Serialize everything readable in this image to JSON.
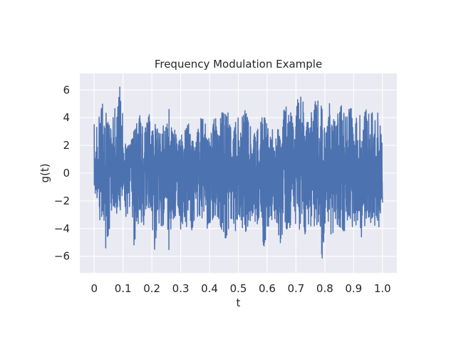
{
  "chart_data": {
    "type": "line",
    "title": "Frequency Modulation Example",
    "xlabel": "t",
    "ylabel": "g(t)",
    "xlim": [
      -0.05,
      1.05
    ],
    "ylim": [
      -7.2,
      7.2
    ],
    "xticks": [
      0,
      0.1,
      0.2,
      0.3,
      0.4,
      0.5,
      0.6,
      0.7,
      0.8,
      0.9,
      1.0
    ],
    "xtick_labels": [
      "0",
      "0.1",
      "0.2",
      "0.3",
      "0.4",
      "0.5",
      "0.6",
      "0.7",
      "0.8",
      "0.9",
      "1.0"
    ],
    "yticks": [
      -6,
      -4,
      -2,
      0,
      2,
      4,
      6
    ],
    "ytick_labels": [
      "−6",
      "−4",
      "−2",
      "0",
      "2",
      "4",
      "6"
    ],
    "grid": true,
    "series": [
      {
        "color": "#4c72b0",
        "description": "dense noisy oscillating signal between roughly -6 and 7",
        "x": [
          0,
          0.01,
          0.02,
          0.03,
          0.04,
          0.05,
          0.06,
          0.07,
          0.08,
          0.09,
          0.095,
          0.1,
          0.11,
          0.12,
          0.13,
          0.14,
          0.15,
          0.16,
          0.17,
          0.18,
          0.19,
          0.2,
          0.21,
          0.22,
          0.23,
          0.24,
          0.25,
          0.26,
          0.27,
          0.28,
          0.29,
          0.3,
          0.31,
          0.32,
          0.33,
          0.34,
          0.35,
          0.36,
          0.37,
          0.38,
          0.39,
          0.4,
          0.41,
          0.42,
          0.43,
          0.44,
          0.45,
          0.46,
          0.47,
          0.48,
          0.49,
          0.5,
          0.51,
          0.52,
          0.53,
          0.54,
          0.55,
          0.56,
          0.57,
          0.58,
          0.59,
          0.6,
          0.61,
          0.62,
          0.63,
          0.64,
          0.65,
          0.66,
          0.67,
          0.68,
          0.69,
          0.7,
          0.71,
          0.72,
          0.73,
          0.74,
          0.75,
          0.76,
          0.77,
          0.78,
          0.79,
          0.8,
          0.81,
          0.82,
          0.83,
          0.84,
          0.85,
          0.86,
          0.87,
          0.88,
          0.89,
          0.9,
          0.91,
          0.92,
          0.93,
          0.94,
          0.95,
          0.96,
          0.97,
          0.98,
          0.99,
          1.0
        ],
        "y_max": [
          3.6,
          4.1,
          4.3,
          5.2,
          4.6,
          4.5,
          5.0,
          5.2,
          4.9,
          6.7,
          6.2,
          4.9,
          1.8,
          2.2,
          2.5,
          3.0,
          4.5,
          4.4,
          3.0,
          3.9,
          4.5,
          3.3,
          3.8,
          3.6,
          2.8,
          3.6,
          3.4,
          4.9,
          3.0,
          3.2,
          2.2,
          2.8,
          3.0,
          3.5,
          4.7,
          3.2,
          2.0,
          3.3,
          4.0,
          5.0,
          3.0,
          3.2,
          4.1,
          4.5,
          3.1,
          5.0,
          4.5,
          4.9,
          3.6,
          3.2,
          3.8,
          4.1,
          3.0,
          6.1,
          4.1,
          4.0,
          3.0,
          3.5,
          4.4,
          4.1,
          4.6,
          3.6,
          2.6,
          3.4,
          4.3,
          3.9,
          2.2,
          5.8,
          4.1,
          4.8,
          3.9,
          4.4,
          6.3,
          5.8,
          4.5,
          3.5,
          4.9,
          4.0,
          6.0,
          4.8,
          5.6,
          4.1,
          3.4,
          6.0,
          4.2,
          3.4,
          5.0,
          4.9,
          4.1,
          4.6,
          5.0,
          3.0,
          4.1,
          4.6,
          2.6,
          4.7,
          4.5,
          6.3,
          3.3,
          4.6,
          4.0,
          2.6
        ],
        "y_min": [
          -0.6,
          -1.8,
          -3.5,
          -2.9,
          -5.8,
          -4.4,
          -3.3,
          -2.7,
          -3.0,
          -2.0,
          -3.4,
          -0.9,
          -3.9,
          -2.8,
          -3.5,
          -5.8,
          -3.8,
          -3.3,
          -4.0,
          -2.8,
          -2.5,
          -3.6,
          -5.8,
          -3.2,
          -4.5,
          -3.8,
          -3.0,
          -5.8,
          -3.1,
          -4.0,
          -3.0,
          -4.3,
          -3.5,
          -3.9,
          -4.0,
          -4.3,
          -3.0,
          -3.8,
          -3.0,
          -4.5,
          -4.2,
          -3.6,
          -4.1,
          -3.9,
          -3.2,
          -4.3,
          -4.7,
          -5.0,
          -4.0,
          -3.1,
          -4.3,
          -3.3,
          -3.7,
          -5.6,
          -4.8,
          -4.0,
          -3.2,
          -3.9,
          -4.0,
          -3.5,
          -6.0,
          -4.3,
          -3.5,
          -3.6,
          -3.8,
          -4.6,
          -5.4,
          -3.8,
          -4.3,
          -4.0,
          -3.2,
          -3.8,
          -4.6,
          -3.9,
          -4.4,
          -5.2,
          -4.0,
          -3.6,
          -4.3,
          -3.3,
          -6.4,
          -4.2,
          -3.3,
          -4.4,
          -4.5,
          -3.7,
          -4.8,
          -4.3,
          -4.2,
          -3.3,
          -3.9,
          -4.7,
          -4.1,
          -3.2,
          -5.2,
          -4.0,
          -3.6,
          -3.8,
          -4.6,
          -3.7,
          -4.1,
          -2.5
        ]
      }
    ]
  }
}
